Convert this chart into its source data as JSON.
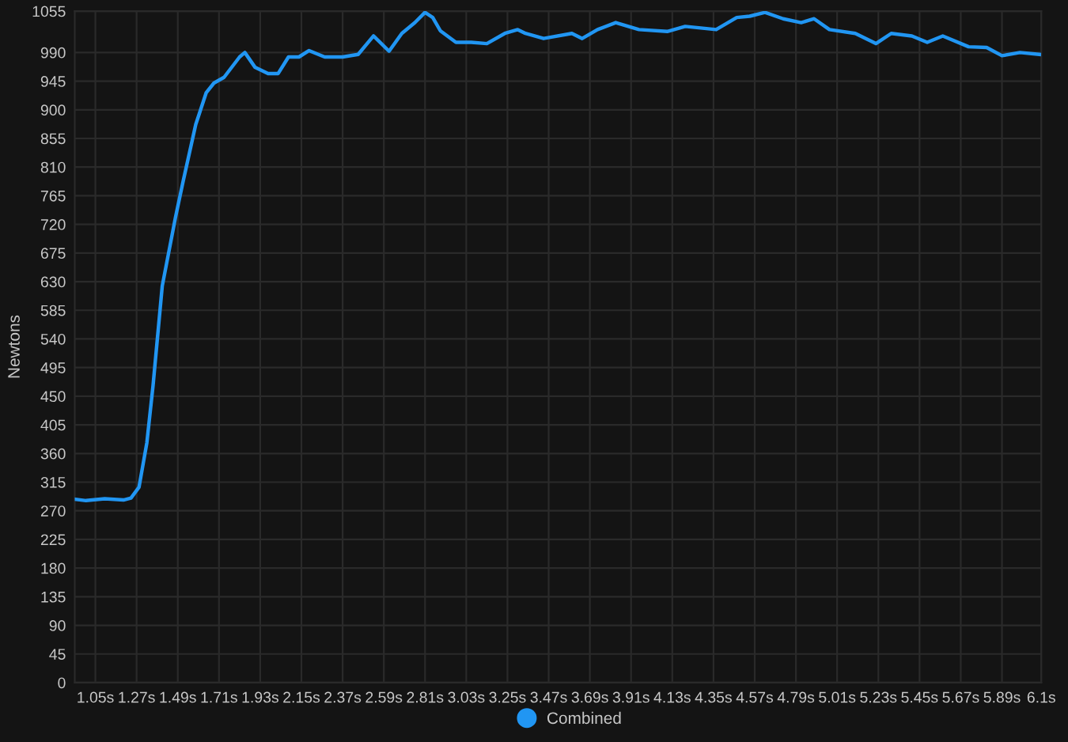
{
  "chart_data": {
    "type": "line",
    "ylabel": "Newtons",
    "legend": "bottom",
    "grid": true,
    "marker": "none",
    "line_style": "solid",
    "xlim": [
      0.94,
      6.1
    ],
    "ylim": [
      0,
      1055
    ],
    "xticks": [
      {
        "value": 1.05,
        "label": "1.05s"
      },
      {
        "value": 1.27,
        "label": "1.27s"
      },
      {
        "value": 1.49,
        "label": "1.49s"
      },
      {
        "value": 1.71,
        "label": "1.71s"
      },
      {
        "value": 1.93,
        "label": "1.93s"
      },
      {
        "value": 2.15,
        "label": "2.15s"
      },
      {
        "value": 2.37,
        "label": "2.37s"
      },
      {
        "value": 2.59,
        "label": "2.59s"
      },
      {
        "value": 2.81,
        "label": "2.81s"
      },
      {
        "value": 3.03,
        "label": "3.03s"
      },
      {
        "value": 3.25,
        "label": "3.25s"
      },
      {
        "value": 3.47,
        "label": "3.47s"
      },
      {
        "value": 3.69,
        "label": "3.69s"
      },
      {
        "value": 3.91,
        "label": "3.91s"
      },
      {
        "value": 4.13,
        "label": "4.13s"
      },
      {
        "value": 4.35,
        "label": "4.35s"
      },
      {
        "value": 4.57,
        "label": "4.57s"
      },
      {
        "value": 4.79,
        "label": "4.79s"
      },
      {
        "value": 5.01,
        "label": "5.01s"
      },
      {
        "value": 5.23,
        "label": "5.23s"
      },
      {
        "value": 5.45,
        "label": "5.45s"
      },
      {
        "value": 5.67,
        "label": "5.67s"
      },
      {
        "value": 5.89,
        "label": "5.89s"
      },
      {
        "value": 6.1,
        "label": "6.1s"
      }
    ],
    "yticks": [
      0,
      45,
      90,
      135,
      180,
      225,
      270,
      315,
      360,
      405,
      450,
      495,
      540,
      585,
      630,
      675,
      720,
      765,
      810,
      855,
      900,
      945,
      990,
      1055
    ],
    "series": [
      {
        "name": "Combined",
        "color": "#2196f3",
        "x": [
          0.943,
          1.0,
          1.1,
          1.2,
          1.24,
          1.283,
          1.325,
          1.358,
          1.407,
          1.477,
          1.518,
          1.586,
          1.642,
          1.683,
          1.737,
          1.82,
          1.848,
          1.902,
          1.972,
          2.026,
          2.081,
          2.137,
          2.191,
          2.274,
          2.37,
          2.453,
          2.535,
          2.618,
          2.686,
          2.756,
          2.81,
          2.851,
          2.892,
          2.975,
          3.057,
          3.14,
          3.236,
          3.305,
          3.346,
          3.443,
          3.594,
          3.649,
          3.731,
          3.828,
          3.952,
          4.103,
          4.199,
          4.364,
          4.474,
          4.543,
          4.625,
          4.722,
          4.818,
          4.887,
          4.969,
          5.107,
          5.217,
          5.299,
          5.409,
          5.491,
          5.574,
          5.712,
          5.808,
          5.89,
          5.986,
          6.09
        ],
        "values": [
          288,
          286,
          289,
          287,
          290,
          307,
          377,
          467,
          623,
          730,
          787,
          877,
          927,
          942,
          951,
          983,
          990,
          967,
          957,
          957,
          983,
          983,
          993,
          983,
          983,
          987,
          1016,
          992,
          1020,
          1037,
          1053,
          1045,
          1024,
          1006,
          1006,
          1004,
          1020,
          1026,
          1020,
          1012,
          1020,
          1012,
          1026,
          1037,
          1026,
          1023,
          1031,
          1026,
          1045,
          1047,
          1053,
          1043,
          1037,
          1043,
          1026,
          1020,
          1004,
          1020,
          1016,
          1006,
          1016,
          999,
          998,
          985,
          990,
          987
        ]
      }
    ]
  }
}
